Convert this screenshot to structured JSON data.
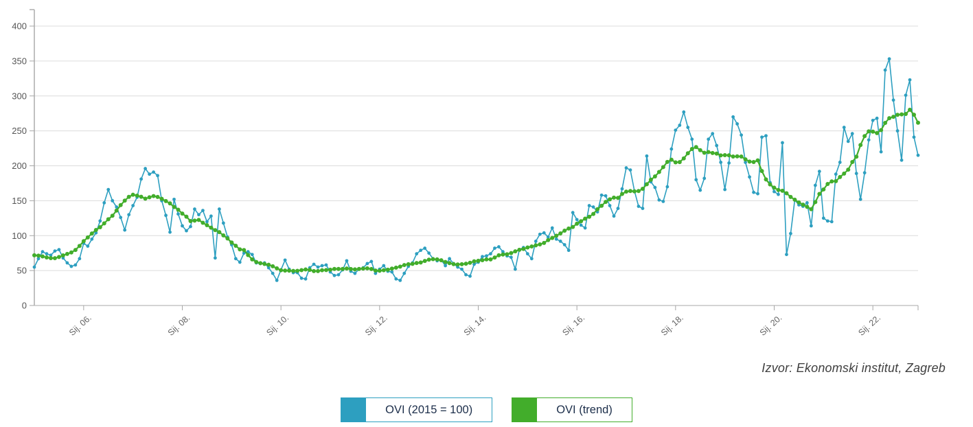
{
  "chart": {
    "source_note": "Izvor: Ekonomski institut, Zagreb",
    "legend": [
      {
        "label": "OVI (2015 = 100)",
        "color": "#2d9fc0"
      },
      {
        "label": "OVI (trend)",
        "color": "#42ad2b"
      }
    ],
    "axis_color": "#a6a6a6",
    "grid_color": "#dcdcdc",
    "tick_label_color": "#636363"
  },
  "chart_data": {
    "type": "line",
    "title": "",
    "xlabel": "",
    "ylabel": "",
    "x_unit": "month",
    "x_start": "Sij. 2005",
    "x_end": "Pro. 2022",
    "x_tick_labels": [
      "Sij. 06.",
      "Sij. 08.",
      "Sij. 10.",
      "Sij. 12.",
      "Sij. 14.",
      "Sij. 16.",
      "Sij. 18.",
      "Sij. 20.",
      "Sij. 22."
    ],
    "x_tick_month_indices": [
      12,
      36,
      60,
      84,
      108,
      132,
      156,
      180,
      204
    ],
    "y_ticks": [
      0,
      50,
      100,
      150,
      200,
      250,
      300,
      350,
      400
    ],
    "ylim": [
      0,
      400
    ],
    "grid": "horizontal",
    "legend_position": "bottom",
    "series": [
      {
        "name": "OVI (2015 = 100)",
        "color": "#2d9fc0",
        "values": [
          55,
          67,
          77,
          74,
          72,
          78,
          80,
          68,
          61,
          56,
          58,
          67,
          89,
          85,
          95,
          104,
          121,
          147,
          166,
          150,
          141,
          126,
          108,
          130,
          143,
          155,
          181,
          196,
          188,
          191,
          186,
          150,
          129,
          105,
          152,
          131,
          114,
          107,
          113,
          138,
          130,
          136,
          120,
          128,
          68,
          138,
          118,
          98,
          87,
          67,
          62,
          75,
          77,
          73,
          61,
          60,
          61,
          54,
          46,
          36,
          51,
          65,
          52,
          47,
          47,
          39,
          38,
          54,
          59,
          55,
          57,
          58,
          48,
          43,
          44,
          51,
          64,
          49,
          46,
          52,
          54,
          60,
          63,
          46,
          52,
          57,
          49,
          48,
          38,
          36,
          46,
          56,
          61,
          74,
          79,
          82,
          75,
          67,
          64,
          65,
          57,
          67,
          60,
          55,
          52,
          44,
          42,
          59,
          62,
          70,
          71,
          74,
          82,
          84,
          77,
          71,
          69,
          52,
          80,
          83,
          74,
          67,
          92,
          102,
          104,
          98,
          111,
          95,
          92,
          87,
          79,
          133,
          123,
          115,
          111,
          143,
          141,
          134,
          158,
          157,
          143,
          128,
          139,
          167,
          197,
          194,
          164,
          142,
          139,
          214,
          177,
          169,
          151,
          149,
          170,
          224,
          251,
          258,
          277,
          255,
          238,
          180,
          165,
          182,
          238,
          246,
          229,
          205,
          166,
          204,
          270,
          260,
          244,
          205,
          184,
          162,
          160,
          241,
          243,
          176,
          163,
          159,
          233,
          73,
          103,
          151,
          144,
          142,
          147,
          114,
          172,
          192,
          125,
          121,
          120,
          188,
          205,
          255,
          235,
          246,
          189,
          152,
          190,
          237,
          265,
          268,
          220,
          337,
          353,
          294,
          250,
          208,
          301,
          323,
          241,
          215
        ]
      },
      {
        "name": "OVI (trend)",
        "color": "#42ad2b",
        "derived": "13-month centered moving average of the OVI series (smoothed trend as drawn)",
        "values": null
      }
    ]
  }
}
